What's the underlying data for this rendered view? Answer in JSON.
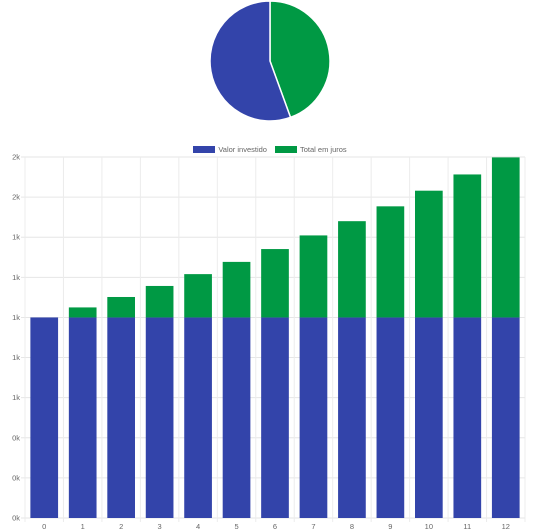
{
  "chart_data": [
    {
      "type": "pie",
      "series": [
        {
          "name": "Valor investido",
          "value": 1000
        },
        {
          "name": "Total em juros",
          "value": 800
        }
      ],
      "colors": [
        "#3344aa",
        "#009944"
      ]
    },
    {
      "type": "bar",
      "stacked": true,
      "categories": [
        "0",
        "1",
        "2",
        "3",
        "4",
        "5",
        "6",
        "7",
        "8",
        "9",
        "10",
        "11",
        "12"
      ],
      "series": [
        {
          "name": "Valor investido",
          "color": "#3344aa",
          "values": [
            1000,
            1000,
            1000,
            1000,
            1000,
            1000,
            1000,
            1000,
            1000,
            1000,
            1000,
            1000,
            1000
          ]
        },
        {
          "name": "Total em juros",
          "color": "#009944",
          "values": [
            0,
            50,
            102,
            157,
            216,
            277,
            341,
            409,
            480,
            554,
            632,
            713,
            798
          ]
        }
      ],
      "ylim": [
        0,
        1800
      ],
      "ytick_values": [
        0,
        200,
        400,
        600,
        800,
        1000,
        1200,
        1400,
        1600,
        1800
      ],
      "ytick_labels": [
        "0k",
        "0k",
        "0k",
        "1k",
        "1k",
        "1k",
        "1k",
        "1k",
        "2k",
        "2k"
      ],
      "grid": true,
      "legend": "top-center"
    }
  ]
}
